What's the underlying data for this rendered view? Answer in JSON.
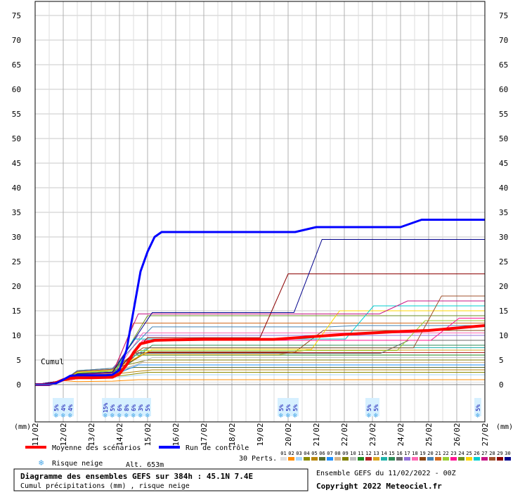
{
  "chart_data": {
    "type": "line",
    "title": "Diagramme des ensembles GEFS sur 384h : 45.1N 7.4E",
    "subtitle": "Cumul précipitations (mm) , risque neige",
    "inner_label": "Cumul",
    "ylim": [
      0,
      75
    ],
    "y_ticks": [
      "0",
      "5",
      "10",
      "15",
      "20",
      "25",
      "30",
      "35",
      "40",
      "45",
      "50",
      "55",
      "60",
      "65",
      "70",
      "75"
    ],
    "y_unit": "(mm)",
    "x_ticks": [
      "11/02",
      "12/02",
      "13/02",
      "14/02",
      "15/02",
      "16/02",
      "17/02",
      "18/02",
      "19/02",
      "20/02",
      "21/02",
      "22/02",
      "23/02",
      "24/02",
      "25/02",
      "26/02",
      "27/02"
    ],
    "x_range_hours": [
      0,
      384
    ],
    "grid": true,
    "series": [
      {
        "name": "Moyenne des scénarios",
        "color": "#ff0000",
        "x": [
          0,
          12,
          18,
          24,
          30,
          36,
          48,
          66,
          72,
          78,
          84,
          90,
          102,
          120,
          144,
          156,
          180,
          192,
          204,
          216,
          240,
          264,
          288,
          312,
          336,
          360,
          384
        ],
        "y": [
          0,
          0,
          0.4,
          1,
          1.3,
          1.4,
          1.4,
          1.5,
          2.2,
          4,
          6.5,
          8.3,
          9,
          9.1,
          9.2,
          9.2,
          9.2,
          9.2,
          9.2,
          9.4,
          9.8,
          10.2,
          10.5,
          10.8,
          11,
          11.5,
          12
        ]
      },
      {
        "name": "Run de contrôle",
        "color": "#0000ff",
        "x": [
          0,
          12,
          18,
          24,
          30,
          36,
          48,
          60,
          66,
          72,
          78,
          84,
          90,
          96,
          102,
          108,
          150,
          168,
          180,
          192,
          198,
          210,
          222,
          240,
          264,
          288,
          300,
          312,
          330,
          384
        ],
        "y": [
          0,
          0,
          0.3,
          1,
          1.8,
          1.9,
          1.9,
          1.9,
          2,
          3,
          7,
          15,
          23,
          27,
          30,
          31,
          31,
          31,
          31,
          31,
          31,
          31,
          31,
          32,
          32,
          32,
          32,
          32,
          33.5,
          33.5
        ]
      }
    ]
  },
  "snow": {
    "label": "Risque neige",
    "altitude": "Alt. 653m",
    "groups": [
      {
        "hour": 24,
        "pcts": [
          "5%",
          "4%",
          "4%"
        ]
      },
      {
        "hour": 78,
        "pcts": [
          "15%",
          "5%",
          "6%",
          "8%",
          "6%",
          "3%",
          "5%"
        ]
      },
      {
        "hour": 216,
        "pcts": [
          "5%",
          "5%",
          "5%"
        ]
      },
      {
        "hour": 288,
        "pcts": [
          "5%",
          "5%"
        ]
      },
      {
        "hour": 378,
        "pcts": [
          "5%"
        ]
      }
    ]
  },
  "perts": {
    "label": "30 Perts.",
    "numbers": [
      "01",
      "02",
      "03",
      "04",
      "05",
      "06",
      "07",
      "08",
      "09",
      "10",
      "11",
      "12",
      "13",
      "14",
      "15",
      "16",
      "17",
      "18",
      "19",
      "20",
      "21",
      "22",
      "23",
      "24",
      "25",
      "26",
      "27",
      "28",
      "29",
      "30"
    ],
    "colors": [
      "#e0e0e0",
      "#ff8c00",
      "#a8d8ff",
      "#8b8b00",
      "#b8860b",
      "#556b2f",
      "#1e90ff",
      "#d2b48c",
      "#808000",
      "#c0c0c0",
      "#228b22",
      "#b22222",
      "#daa520",
      "#20b2aa",
      "#2e8b57",
      "#696969",
      "#9370db",
      "#ff69b4",
      "#8b4513",
      "#4682b4",
      "#d2691e",
      "#9acd32",
      "#ff1493",
      "#6b8e23",
      "#ffd700",
      "#00ced1",
      "#c71585",
      "#a0522d",
      "#8b0000",
      "#00008b"
    ]
  },
  "info": {
    "ensemble": "Ensemble GEFS du 11/02/2022 - 00Z",
    "copyright": "Copyright 2022 Meteociel.fr"
  }
}
